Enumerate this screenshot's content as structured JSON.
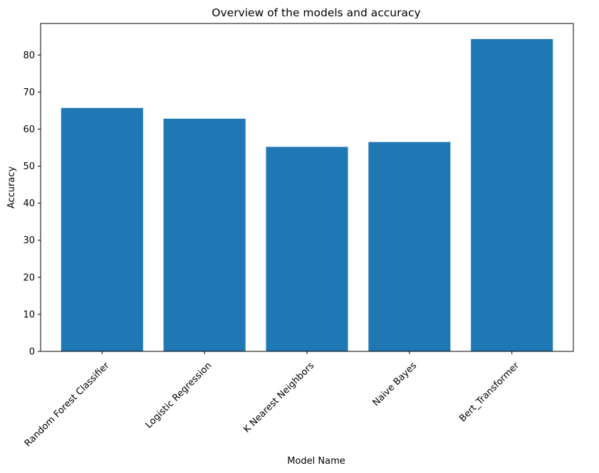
{
  "chart_data": {
    "type": "bar",
    "title": "Overview of the models and accuracy",
    "xlabel": "Model Name",
    "ylabel": "Accuracy",
    "categories": [
      "Random Forest Classifier",
      "Logistic Regression",
      "K Nearest Neighbors",
      "Naive Bayes",
      "Bert_Transformer"
    ],
    "values": [
      65.7,
      62.8,
      55.2,
      56.5,
      84.3
    ],
    "ylim": [
      0,
      88.5
    ],
    "yticks": [
      0,
      10,
      20,
      30,
      40,
      50,
      60,
      70,
      80
    ],
    "grid": false,
    "bar_color": "#1f77b4"
  }
}
